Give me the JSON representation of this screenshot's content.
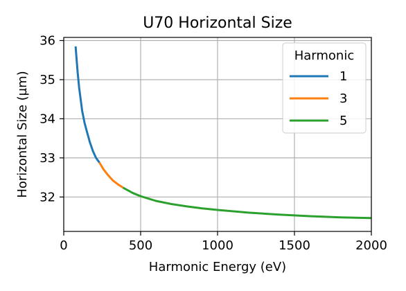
{
  "chart_data": {
    "type": "line",
    "title": "U70 Horizontal Size",
    "xlabel": "Harmonic Energy (eV)",
    "ylabel": "Horizontal Size (µm)",
    "xlim": [
      0,
      2000
    ],
    "ylim": [
      31.12,
      36.08
    ],
    "xticks": [
      0,
      500,
      1000,
      1500,
      2000
    ],
    "xtick_labels": [
      "0",
      "500",
      "1000",
      "1500",
      "2000"
    ],
    "yticks": [
      32,
      33,
      34,
      35,
      36
    ],
    "ytick_labels": [
      "32",
      "33",
      "34",
      "35",
      "36"
    ],
    "grid": true,
    "legend": {
      "title": "Harmonic",
      "position": "top-right"
    },
    "series": [
      {
        "name": "1",
        "color": "#1f77b4",
        "x": [
          77,
          90,
          100,
          110,
          120,
          135,
          150,
          170,
          190,
          210,
          232
        ],
        "y": [
          35.85,
          35.2,
          34.8,
          34.5,
          34.2,
          33.9,
          33.68,
          33.4,
          33.17,
          33.0,
          32.88
        ]
      },
      {
        "name": "3",
        "color": "#ff7f0e",
        "x": [
          232,
          260,
          290,
          320,
          350,
          385
        ],
        "y": [
          32.88,
          32.7,
          32.55,
          32.42,
          32.33,
          32.24
        ]
      },
      {
        "name": "5",
        "color": "#2ca02c",
        "x": [
          385,
          450,
          500,
          600,
          700,
          800,
          900,
          1000,
          1200,
          1400,
          1600,
          1800,
          2000
        ],
        "y": [
          32.24,
          32.1,
          32.02,
          31.9,
          31.82,
          31.76,
          31.71,
          31.67,
          31.6,
          31.55,
          31.51,
          31.48,
          31.46
        ]
      }
    ]
  }
}
